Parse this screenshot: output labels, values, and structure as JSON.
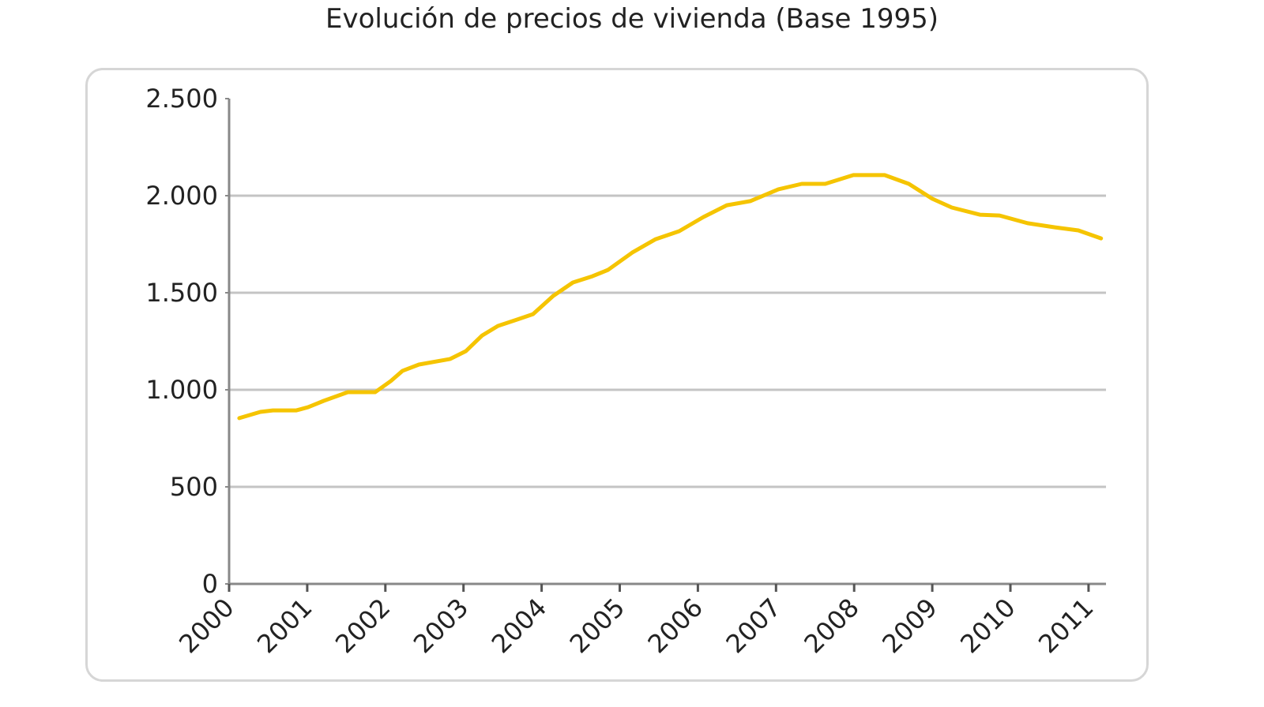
{
  "chart_data": {
    "type": "line",
    "title": "Evolución de precios de vivienda (Base 1995)",
    "xlabel": "",
    "ylabel": "",
    "ylim": [
      0,
      2500
    ],
    "xlim": [
      2000,
      2011.25
    ],
    "yticks": [
      0,
      500,
      1000,
      1500,
      2000,
      2500
    ],
    "ytick_labels": [
      "0",
      "500",
      "1.000",
      "1.500",
      "2.000",
      "2.500"
    ],
    "xticks": [
      2000,
      2001,
      2002,
      2003,
      2004,
      2005,
      2006,
      2007,
      2008,
      2009,
      2010,
      2011
    ],
    "xtick_labels": [
      "2000",
      "2001",
      "2002",
      "2003",
      "2004",
      "2005",
      "2006",
      "2007",
      "2008",
      "2009",
      "2010",
      "2011"
    ],
    "grid": "horizontal",
    "legend": "none",
    "series": [
      {
        "color": "#f5c400",
        "x": [
          2000.13,
          2000.4,
          2000.56,
          2000.86,
          2001.01,
          2001.21,
          2001.52,
          2001.87,
          2002.07,
          2002.22,
          2002.43,
          2002.83,
          2003.03,
          2003.24,
          2003.44,
          2003.69,
          2003.89,
          2004.15,
          2004.4,
          2004.65,
          2004.85,
          2005.16,
          2005.46,
          2005.76,
          2006.07,
          2006.37,
          2006.67,
          2007.03,
          2007.33,
          2007.63,
          2007.99,
          2008.39,
          2008.7,
          2009.0,
          2009.25,
          2009.61,
          2009.86,
          2010.22,
          2010.57,
          2010.87,
          2011.16
        ],
        "y": [
          854,
          886,
          894,
          894,
          910,
          943,
          988,
          988,
          1045,
          1098,
          1130,
          1159,
          1199,
          1280,
          1329,
          1362,
          1390,
          1484,
          1553,
          1585,
          1618,
          1707,
          1776,
          1817,
          1890,
          1951,
          1972,
          2033,
          2061,
          2061,
          2106,
          2106,
          2061,
          1984,
          1939,
          1902,
          1898,
          1858,
          1837,
          1821,
          1780
        ]
      }
    ],
    "colors": {
      "line": "#f5c400",
      "grid": "#c4c4c4",
      "axis": "#888888",
      "frame": "#d6d6d6"
    }
  }
}
